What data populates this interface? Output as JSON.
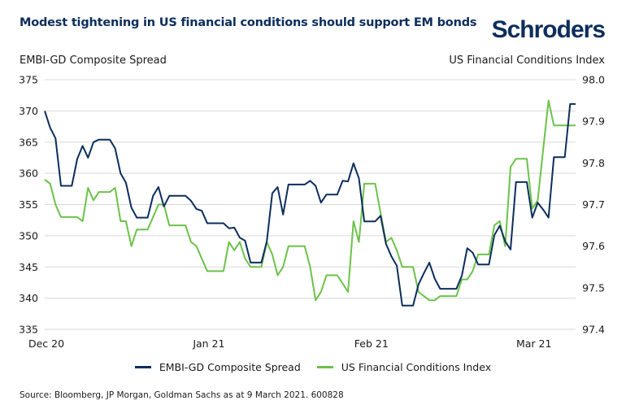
{
  "header": {
    "title": "Modest tightening in US financial conditions should support EM bonds",
    "brand": "Schroders"
  },
  "footer": {
    "source": "Source: Bloomberg, JP Morgan, Goldman Sachs as at 9 March 2021. 600828"
  },
  "colors": {
    "embi": "#0c2e5c",
    "fci": "#6cc24a",
    "grid": "#d9d9d9"
  },
  "chart_data": {
    "type": "line",
    "title": "Modest tightening in US financial conditions should support EM bonds",
    "xlabel": "",
    "ylabel": "EMBI-GD Composite Spread",
    "ylabel_right": "US Financial Conditions Index",
    "ylim": [
      335,
      375
    ],
    "ylim_right": [
      97.4,
      98.0
    ],
    "yticks": [
      "375",
      "370",
      "365",
      "360",
      "355",
      "350",
      "345",
      "340",
      "335"
    ],
    "yticks_right": [
      "98.0",
      "97.9",
      "97.8",
      "97.7",
      "97.6",
      "97.5",
      "97.4"
    ],
    "x_tick_labels": [
      {
        "label": "Dec 20",
        "index": 0
      },
      {
        "label": "Jan 21",
        "index": 30
      },
      {
        "label": "Feb 21",
        "index": 60
      },
      {
        "label": "Mar 21",
        "index": 90
      }
    ],
    "grid": true,
    "legend_position": "bottom",
    "series": [
      {
        "name": "EMBI-GD Composite Spread",
        "axis": "left",
        "values": [
          370,
          367.3,
          365.6,
          358,
          358,
          358,
          362.3,
          364.4,
          362.5,
          365,
          365.4,
          365.4,
          365.4,
          364,
          360,
          358.5,
          354.5,
          352.9,
          352.9,
          352.9,
          356.4,
          357.8,
          354.7,
          356.4,
          356.4,
          356.4,
          356.4,
          355.6,
          354.3,
          354,
          352,
          352,
          352,
          352,
          351.2,
          351.3,
          349.7,
          349.2,
          345.7,
          345.7,
          345.7,
          349.1,
          356.8,
          357.8,
          353.4,
          358.2,
          358.2,
          358.2,
          358.2,
          358.8,
          358,
          355.3,
          356.6,
          356.6,
          356.6,
          358.8,
          358.7,
          361.6,
          359.2,
          352.3,
          352.3,
          352.3,
          353.2,
          348.7,
          346.7,
          345.2,
          338.8,
          338.8,
          338.8,
          342.2,
          344,
          345.7,
          343.1,
          341.5,
          341.5,
          341.5,
          341.5,
          343.6,
          348,
          347.3,
          345.4,
          345.4,
          345.4,
          350.1,
          351.6,
          349.1,
          347.8,
          358.6,
          358.6,
          358.6,
          352.9,
          355.3,
          354.2,
          352.9,
          362.6,
          362.6,
          362.6,
          371.1,
          371.1
        ]
      },
      {
        "name": "US Financial Conditions Index",
        "axis": "right",
        "values": [
          97.76,
          97.75,
          97.7,
          97.67,
          97.67,
          97.67,
          97.67,
          97.66,
          97.74,
          97.71,
          97.73,
          97.73,
          97.73,
          97.74,
          97.66,
          97.66,
          97.6,
          97.64,
          97.64,
          97.64,
          97.67,
          97.7,
          97.7,
          97.65,
          97.65,
          97.65,
          97.65,
          97.61,
          97.6,
          97.57,
          97.54,
          97.54,
          97.54,
          97.54,
          97.61,
          97.59,
          97.61,
          97.57,
          97.55,
          97.55,
          97.55,
          97.61,
          97.58,
          97.53,
          97.55,
          97.6,
          97.6,
          97.6,
          97.6,
          97.55,
          97.47,
          97.49,
          97.53,
          97.53,
          97.53,
          97.51,
          97.49,
          97.66,
          97.61,
          97.75,
          97.75,
          97.75,
          97.68,
          97.61,
          97.62,
          97.59,
          97.55,
          97.55,
          97.55,
          97.49,
          97.48,
          97.47,
          97.47,
          97.48,
          97.48,
          97.48,
          97.48,
          97.52,
          97.52,
          97.54,
          97.58,
          97.58,
          97.58,
          97.65,
          97.66,
          97.6,
          97.79,
          97.81,
          97.81,
          97.81,
          97.69,
          97.71,
          97.83,
          97.95,
          97.89,
          97.89,
          97.89,
          97.89,
          97.89
        ]
      }
    ]
  }
}
